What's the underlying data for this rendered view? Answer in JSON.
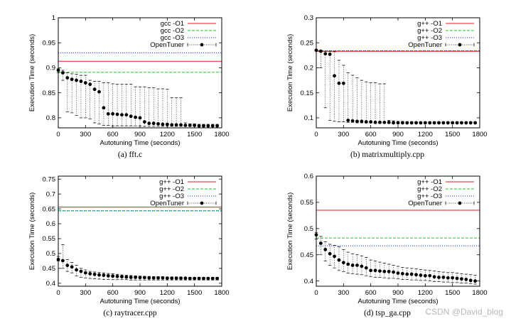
{
  "watermark": "CSDN @David_blog",
  "chart_data": [
    {
      "type": "line",
      "caption": "(a) fft.c",
      "xlabel": "Autotuning Time (seconds)",
      "ylabel": "Execution Time (seconds)",
      "xlim": [
        0,
        1800
      ],
      "ylim": [
        0.78,
        1.0
      ],
      "xticks": [
        0,
        300,
        600,
        900,
        1200,
        1500,
        1800
      ],
      "xtick_labels": [
        "0",
        "300",
        "600",
        "900",
        "1200",
        "1500",
        "1800"
      ],
      "yticks": [
        0.8,
        0.85,
        0.9,
        0.95,
        1.0
      ],
      "ytick_labels": [
        "0.8",
        "0.85",
        "0.9",
        "0.95",
        "1"
      ],
      "legend_position": "top-right",
      "baselines": [
        {
          "name": "gcc -O1",
          "value": 0.913,
          "color": "#e41a1c",
          "style": "solid"
        },
        {
          "name": "gcc -O2",
          "value": 0.891,
          "color": "#22cc22",
          "style": "dashed"
        },
        {
          "name": "gcc -O3",
          "value": 0.93,
          "color": "#2233ee",
          "style": "dotted"
        }
      ],
      "series": [
        {
          "name": "OpenTuner",
          "x": [
            0,
            50,
            100,
            150,
            200,
            250,
            300,
            350,
            400,
            450,
            500,
            550,
            600,
            650,
            700,
            750,
            800,
            850,
            900,
            950,
            1000,
            1050,
            1100,
            1150,
            1200,
            1250,
            1300,
            1350,
            1400,
            1450,
            1500,
            1550,
            1600,
            1650,
            1700,
            1750
          ],
          "y": [
            0.895,
            0.89,
            0.88,
            0.877,
            0.875,
            0.873,
            0.87,
            0.867,
            0.857,
            0.852,
            0.82,
            0.808,
            0.808,
            0.807,
            0.806,
            0.806,
            0.803,
            0.801,
            0.8,
            0.792,
            0.789,
            0.789,
            0.788,
            0.787,
            0.787,
            0.786,
            0.786,
            0.786,
            0.785,
            0.785,
            0.785,
            0.784,
            0.784,
            0.784,
            0.784,
            0.784
          ],
          "err_low": [
            0.89,
            0.875,
            0.812,
            0.81,
            0.805,
            0.8,
            0.8,
            0.798,
            0.79,
            0.788,
            0.785,
            0.785,
            0.784,
            0.784,
            0.784,
            0.784,
            0.784,
            0.784,
            0.784,
            0.783,
            0.783,
            0.783,
            0.783,
            0.783,
            0.783,
            0.783,
            0.783,
            0.783,
            0.783,
            0.783,
            0.783,
            0.783,
            0.783,
            0.783,
            0.783,
            0.783
          ],
          "err_high": [
            0.898,
            0.895,
            0.89,
            0.888,
            0.887,
            0.885,
            0.885,
            0.875,
            0.873,
            0.873,
            0.87,
            0.87,
            0.868,
            0.867,
            0.867,
            0.867,
            0.867,
            0.862,
            0.862,
            0.862,
            0.86,
            0.86,
            0.858,
            0.858,
            0.857,
            0.84,
            0.84,
            0.84,
            0.79,
            0.788,
            0.788,
            0.787,
            0.787,
            0.787,
            0.787,
            0.787
          ]
        }
      ]
    },
    {
      "type": "line",
      "caption": "(b) matrixmultiply.cpp",
      "xlabel": "Autotuning Time (seconds)",
      "ylabel": "Execution Time (seconds)",
      "xlim": [
        0,
        1800
      ],
      "ylim": [
        0.08,
        0.3
      ],
      "xticks": [
        0,
        300,
        600,
        900,
        1200,
        1500,
        1800
      ],
      "xtick_labels": [
        "0",
        "300",
        "600",
        "900",
        "1200",
        "1500",
        "1800"
      ],
      "yticks": [
        0.1,
        0.15,
        0.2,
        0.25,
        0.3
      ],
      "ytick_labels": [
        "0.1",
        "0.15",
        "0.2",
        "0.25",
        "0.3"
      ],
      "legend_position": "top-right",
      "baselines": [
        {
          "name": "g++ -O1",
          "value": 0.233,
          "color": "#e41a1c",
          "style": "solid"
        },
        {
          "name": "g++ -O2",
          "value": 0.234,
          "color": "#22cc22",
          "style": "dashed"
        },
        {
          "name": "g++ -O3",
          "value": 0.234,
          "color": "#2233ee",
          "style": "dotted"
        }
      ],
      "series": [
        {
          "name": "OpenTuner",
          "x": [
            0,
            50,
            100,
            150,
            200,
            250,
            300,
            350,
            400,
            450,
            500,
            550,
            600,
            650,
            700,
            750,
            800,
            850,
            900,
            950,
            1000,
            1050,
            1100,
            1150,
            1200,
            1250,
            1300,
            1350,
            1400,
            1450,
            1500,
            1550,
            1600,
            1650,
            1700,
            1750
          ],
          "y": [
            0.235,
            0.233,
            0.228,
            0.227,
            0.184,
            0.169,
            0.169,
            0.095,
            0.094,
            0.093,
            0.093,
            0.092,
            0.092,
            0.091,
            0.091,
            0.091,
            0.091,
            0.09,
            0.09,
            0.09,
            0.09,
            0.09,
            0.09,
            0.09,
            0.09,
            0.09,
            0.09,
            0.09,
            0.09,
            0.09,
            0.09,
            0.09,
            0.09,
            0.09,
            0.09,
            0.09
          ],
          "err_low": [
            0.234,
            0.2,
            0.12,
            0.095,
            0.093,
            0.092,
            0.092,
            0.091,
            0.091,
            0.09,
            0.09,
            0.09,
            0.09,
            0.089,
            0.089,
            0.089,
            0.089,
            0.089,
            0.089,
            0.089,
            0.089,
            0.089,
            0.089,
            0.089,
            0.089,
            0.089,
            0.089,
            0.089,
            0.089,
            0.089,
            0.089,
            0.089,
            0.089,
            0.089,
            0.089,
            0.089
          ],
          "err_high": [
            0.236,
            0.235,
            0.233,
            0.233,
            0.232,
            0.215,
            0.205,
            0.19,
            0.185,
            0.18,
            0.175,
            0.172,
            0.17,
            0.17,
            0.168,
            0.168,
            0.095,
            0.094,
            0.093,
            0.093,
            0.092,
            0.092,
            0.092,
            0.092,
            0.092,
            0.092,
            0.092,
            0.092,
            0.092,
            0.092,
            0.092,
            0.092,
            0.092,
            0.092,
            0.092,
            0.092
          ]
        }
      ]
    },
    {
      "type": "line",
      "caption": "(c) raytracer.cpp",
      "xlabel": "Autotuning Time (seconds)",
      "ylabel": "Execution Time (seconds)",
      "xlim": [
        0,
        1800
      ],
      "ylim": [
        0.39,
        0.76
      ],
      "xticks": [
        0,
        300,
        600,
        900,
        1200,
        1500,
        1800
      ],
      "xtick_labels": [
        "0",
        "300",
        "600",
        "900",
        "1200",
        "1500",
        "1800"
      ],
      "yticks": [
        0.4,
        0.45,
        0.5,
        0.55,
        0.6,
        0.65,
        0.7,
        0.75
      ],
      "ytick_labels": [
        "0.4",
        "0.45",
        "0.5",
        "0.55",
        "0.6",
        "0.65",
        "0.7",
        "0.75"
      ],
      "legend_position": "top-right",
      "baselines": [
        {
          "name": "g++ -O1",
          "value": 0.656,
          "color": "#e41a1c",
          "style": "solid"
        },
        {
          "name": "g++ -O2",
          "value": 0.644,
          "color": "#22cc22",
          "style": "dashed"
        },
        {
          "name": "g++ -O3",
          "value": 0.643,
          "color": "#2233ee",
          "style": "dotted"
        }
      ],
      "series": [
        {
          "name": "OpenTuner",
          "x": [
            0,
            50,
            100,
            150,
            200,
            250,
            300,
            350,
            400,
            450,
            500,
            550,
            600,
            650,
            700,
            750,
            800,
            850,
            900,
            950,
            1000,
            1050,
            1100,
            1150,
            1200,
            1250,
            1300,
            1350,
            1400,
            1450,
            1500,
            1550,
            1600,
            1650,
            1700,
            1750
          ],
          "y": [
            0.48,
            0.476,
            0.46,
            0.455,
            0.445,
            0.44,
            0.435,
            0.432,
            0.43,
            0.428,
            0.427,
            0.425,
            0.424,
            0.423,
            0.422,
            0.421,
            0.42,
            0.42,
            0.419,
            0.419,
            0.418,
            0.418,
            0.418,
            0.418,
            0.417,
            0.417,
            0.417,
            0.417,
            0.417,
            0.416,
            0.416,
            0.416,
            0.416,
            0.416,
            0.416,
            0.416
          ],
          "err_low": [
            0.475,
            0.45,
            0.44,
            0.435,
            0.425,
            0.42,
            0.418,
            0.416,
            0.415,
            0.414,
            0.413,
            0.413,
            0.412,
            0.412,
            0.412,
            0.412,
            0.411,
            0.411,
            0.411,
            0.411,
            0.411,
            0.411,
            0.411,
            0.411,
            0.411,
            0.411,
            0.411,
            0.411,
            0.411,
            0.411,
            0.411,
            0.411,
            0.411,
            0.411,
            0.411,
            0.411
          ],
          "err_high": [
            0.49,
            0.53,
            0.48,
            0.47,
            0.46,
            0.45,
            0.445,
            0.44,
            0.438,
            0.436,
            0.435,
            0.433,
            0.432,
            0.43,
            0.428,
            0.427,
            0.426,
            0.425,
            0.424,
            0.423,
            0.423,
            0.422,
            0.422,
            0.422,
            0.421,
            0.421,
            0.421,
            0.421,
            0.42,
            0.42,
            0.42,
            0.42,
            0.42,
            0.42,
            0.42,
            0.42
          ]
        }
      ]
    },
    {
      "type": "line",
      "caption": "(d) tsp_ga.cpp",
      "xlabel": "Autotuning Time (seconds)",
      "ylabel": "Execution Time (seconds)",
      "xlim": [
        0,
        1800
      ],
      "ylim": [
        0.39,
        0.6
      ],
      "xticks": [
        0,
        300,
        600,
        900,
        1200,
        1500,
        1800
      ],
      "xtick_labels": [
        "0",
        "300",
        "600",
        "900",
        "1200",
        "1500",
        "1800"
      ],
      "yticks": [
        0.4,
        0.45,
        0.5,
        0.55,
        0.6
      ],
      "ytick_labels": [
        "0.4",
        "0.45",
        "0.5",
        "0.55",
        "0.6"
      ],
      "legend_position": "top-right",
      "baselines": [
        {
          "name": "g++ -O1",
          "value": 0.535,
          "color": "#e41a1c",
          "style": "solid"
        },
        {
          "name": "g++ -O2",
          "value": 0.482,
          "color": "#22cc22",
          "style": "dashed"
        },
        {
          "name": "g++ -O3",
          "value": 0.467,
          "color": "#2233ee",
          "style": "dotted"
        }
      ],
      "series": [
        {
          "name": "OpenTuner",
          "x": [
            0,
            50,
            100,
            150,
            200,
            250,
            300,
            350,
            400,
            450,
            500,
            550,
            600,
            650,
            700,
            750,
            800,
            850,
            900,
            950,
            1000,
            1050,
            1100,
            1150,
            1200,
            1250,
            1300,
            1350,
            1400,
            1450,
            1500,
            1550,
            1600,
            1650,
            1700,
            1750
          ],
          "y": [
            0.488,
            0.472,
            0.46,
            0.452,
            0.447,
            0.44,
            0.435,
            0.432,
            0.43,
            0.43,
            0.428,
            0.425,
            0.42,
            0.42,
            0.419,
            0.418,
            0.418,
            0.417,
            0.415,
            0.414,
            0.413,
            0.413,
            0.412,
            0.411,
            0.41,
            0.41,
            0.408,
            0.407,
            0.407,
            0.406,
            0.406,
            0.405,
            0.404,
            0.403,
            0.401,
            0.4
          ],
          "err_low": [
            0.48,
            0.45,
            0.438,
            0.43,
            0.425,
            0.42,
            0.418,
            0.415,
            0.414,
            0.413,
            0.412,
            0.41,
            0.408,
            0.407,
            0.407,
            0.406,
            0.405,
            0.405,
            0.404,
            0.403,
            0.403,
            0.402,
            0.402,
            0.401,
            0.401,
            0.4,
            0.399,
            0.399,
            0.398,
            0.398,
            0.397,
            0.397,
            0.396,
            0.396,
            0.395,
            0.394
          ],
          "err_high": [
            0.492,
            0.485,
            0.475,
            0.47,
            0.468,
            0.465,
            0.46,
            0.455,
            0.452,
            0.45,
            0.448,
            0.445,
            0.44,
            0.438,
            0.436,
            0.434,
            0.432,
            0.43,
            0.428,
            0.426,
            0.425,
            0.424,
            0.423,
            0.422,
            0.421,
            0.42,
            0.419,
            0.418,
            0.417,
            0.416,
            0.416,
            0.415,
            0.414,
            0.413,
            0.412,
            0.411
          ]
        }
      ]
    }
  ]
}
